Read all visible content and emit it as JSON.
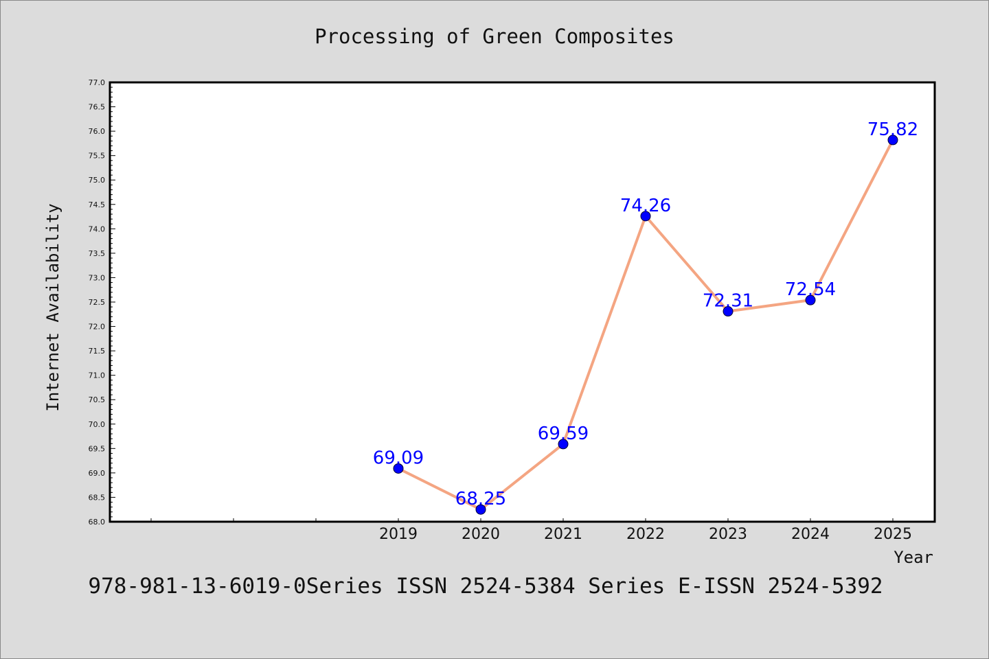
{
  "chart_data": {
    "type": "line",
    "title": "Processing of Green Composites",
    "xlabel": "Year",
    "ylabel": "Internet Availability",
    "x": [
      "2019",
      "2020",
      "2021",
      "2022",
      "2023",
      "2024",
      "2025"
    ],
    "values": [
      69.09,
      68.25,
      69.59,
      74.26,
      72.31,
      72.54,
      75.82
    ],
    "data_labels": [
      "69.09",
      "68.25",
      "69.59",
      "74.26",
      "72.31",
      "72.54",
      "75.82"
    ],
    "ylim": [
      68.0,
      77.0
    ],
    "ytick_step": 0.5,
    "ytick_labels": [
      "68.0",
      "68.5",
      "69.0",
      "69.5",
      "70.0",
      "70.5",
      "71.0",
      "71.5",
      "72.0",
      "72.5",
      "73.0",
      "73.5",
      "74.0",
      "74.5",
      "75.0",
      "75.5",
      "76.0",
      "76.5",
      "77.0"
    ],
    "grid": false,
    "legend": "none",
    "line_color": "#f4a582",
    "marker_color": "#0000ff",
    "label_color": "#0000ff"
  },
  "footer": "978-981-13-6019-0Series ISSN 2524-5384 Series E-ISSN 2524-5392"
}
